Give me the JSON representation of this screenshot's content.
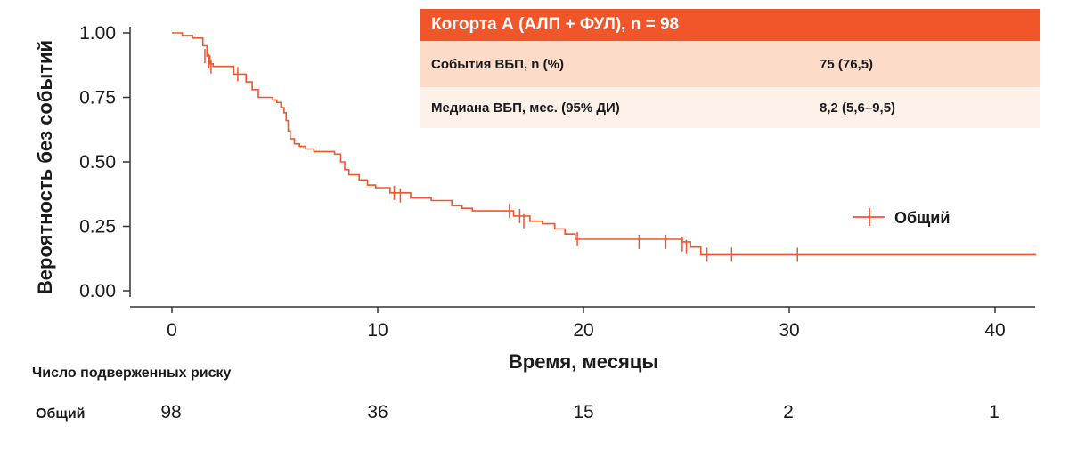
{
  "colors": {
    "curve": "#f0562a",
    "header_bg": "#f0562a",
    "row1_bg": "#fcdcc9",
    "row2_bg": "#fdf1ea"
  },
  "summary": {
    "header": "Когорта А (АЛП + ФУЛ), n = 98",
    "rows": [
      {
        "label": "События ВБП, n (%)",
        "value": "75 (76,5)"
      },
      {
        "label": "Медиана ВБП, мес. (95% ДИ)",
        "value": "8,2 (5,6–9,5)"
      }
    ]
  },
  "risk_table": {
    "title": "Число подверженных риску",
    "row_label": "Общий",
    "times": [
      0,
      10,
      20,
      30,
      40
    ],
    "values": [
      "98",
      "36",
      "15",
      "2",
      "1"
    ]
  },
  "chart_data": {
    "type": "line",
    "subtype": "kaplan-meier-step",
    "xlabel": "Время, месяцы",
    "ylabel": "Вероятность без событий",
    "xlim": [
      -2,
      42
    ],
    "ylim": [
      -0.05,
      1.05
    ],
    "xticks": [
      0,
      10,
      20,
      30,
      40
    ],
    "xtick_labels": [
      "0",
      "10",
      "20",
      "30",
      "40"
    ],
    "yticks": [
      0,
      0.25,
      0.5,
      0.75,
      1.0
    ],
    "ytick_labels": [
      "0.00",
      "0.25",
      "0.50",
      "0.75",
      "1.00"
    ],
    "legend": {
      "placement": "right",
      "entries": [
        "Общий"
      ]
    },
    "series": [
      {
        "name": "Общий",
        "step_points": [
          [
            0,
            1.0
          ],
          [
            0.5,
            1.0
          ],
          [
            0.5,
            0.99
          ],
          [
            1.0,
            0.99
          ],
          [
            1.0,
            0.98
          ],
          [
            1.5,
            0.98
          ],
          [
            1.5,
            0.95
          ],
          [
            1.7,
            0.95
          ],
          [
            1.7,
            0.91
          ],
          [
            1.85,
            0.91
          ],
          [
            1.85,
            0.88
          ],
          [
            2.0,
            0.88
          ],
          [
            2.0,
            0.87
          ],
          [
            3.0,
            0.87
          ],
          [
            3.0,
            0.84
          ],
          [
            3.6,
            0.84
          ],
          [
            3.6,
            0.81
          ],
          [
            3.9,
            0.81
          ],
          [
            3.9,
            0.78
          ],
          [
            4.2,
            0.78
          ],
          [
            4.2,
            0.75
          ],
          [
            4.9,
            0.75
          ],
          [
            4.9,
            0.74
          ],
          [
            5.1,
            0.74
          ],
          [
            5.1,
            0.73
          ],
          [
            5.3,
            0.73
          ],
          [
            5.3,
            0.71
          ],
          [
            5.45,
            0.71
          ],
          [
            5.45,
            0.69
          ],
          [
            5.55,
            0.69
          ],
          [
            5.55,
            0.66
          ],
          [
            5.65,
            0.66
          ],
          [
            5.65,
            0.62
          ],
          [
            5.75,
            0.62
          ],
          [
            5.75,
            0.59
          ],
          [
            5.95,
            0.59
          ],
          [
            5.95,
            0.57
          ],
          [
            6.2,
            0.57
          ],
          [
            6.2,
            0.56
          ],
          [
            6.5,
            0.56
          ],
          [
            6.5,
            0.55
          ],
          [
            6.9,
            0.55
          ],
          [
            6.9,
            0.54
          ],
          [
            7.9,
            0.54
          ],
          [
            7.9,
            0.53
          ],
          [
            8.2,
            0.53
          ],
          [
            8.2,
            0.5
          ],
          [
            8.4,
            0.5
          ],
          [
            8.4,
            0.47
          ],
          [
            8.6,
            0.47
          ],
          [
            8.6,
            0.45
          ],
          [
            9.1,
            0.45
          ],
          [
            9.1,
            0.43
          ],
          [
            9.5,
            0.43
          ],
          [
            9.5,
            0.41
          ],
          [
            9.9,
            0.41
          ],
          [
            9.9,
            0.4
          ],
          [
            10.6,
            0.4
          ],
          [
            10.6,
            0.38
          ],
          [
            11.6,
            0.38
          ],
          [
            11.6,
            0.36
          ],
          [
            12.6,
            0.36
          ],
          [
            12.6,
            0.35
          ],
          [
            13.6,
            0.35
          ],
          [
            13.6,
            0.33
          ],
          [
            14.1,
            0.33
          ],
          [
            14.1,
            0.32
          ],
          [
            14.6,
            0.32
          ],
          [
            14.6,
            0.31
          ],
          [
            16.6,
            0.31
          ],
          [
            16.6,
            0.29
          ],
          [
            17.4,
            0.29
          ],
          [
            17.4,
            0.27
          ],
          [
            18.0,
            0.27
          ],
          [
            18.0,
            0.26
          ],
          [
            18.6,
            0.26
          ],
          [
            18.6,
            0.24
          ],
          [
            19.1,
            0.24
          ],
          [
            19.1,
            0.22
          ],
          [
            19.6,
            0.22
          ],
          [
            19.6,
            0.2
          ],
          [
            24.8,
            0.2
          ],
          [
            24.8,
            0.19
          ],
          [
            25.2,
            0.19
          ],
          [
            25.2,
            0.17
          ],
          [
            25.7,
            0.17
          ],
          [
            25.7,
            0.14
          ],
          [
            42,
            0.14
          ]
        ],
        "censor_times": [
          1.6,
          1.8,
          1.9,
          3.2,
          10.8,
          11.1,
          16.4,
          16.9,
          17.1,
          19.7,
          22.7,
          24.0,
          24.8,
          25.0,
          26.0,
          27.2,
          30.4
        ],
        "censor_values": [
          0.91,
          0.89,
          0.87,
          0.84,
          0.38,
          0.37,
          0.31,
          0.29,
          0.27,
          0.2,
          0.19,
          0.19,
          0.18,
          0.17,
          0.14,
          0.14,
          0.14
        ]
      }
    ]
  }
}
